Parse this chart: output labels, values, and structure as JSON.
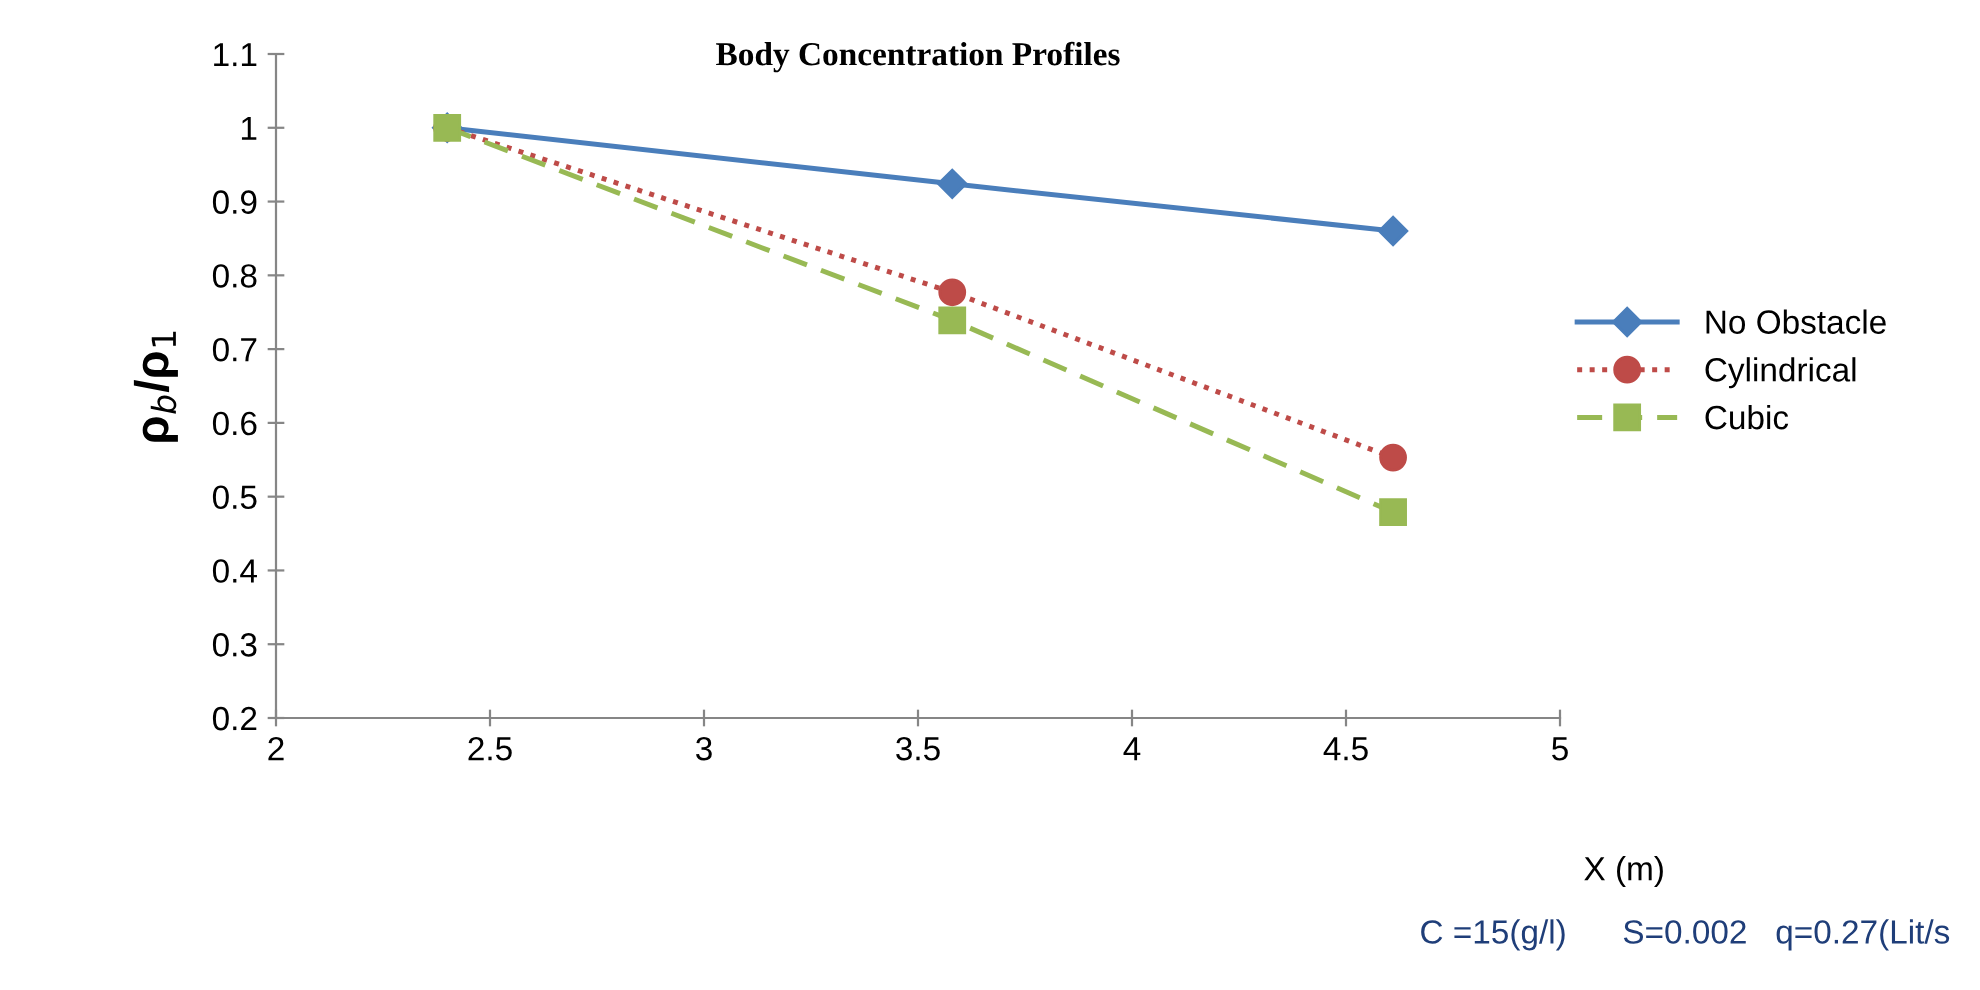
{
  "chart_data": {
    "type": "line",
    "title": "Body Concentration Profiles",
    "xlabel": "X (m)",
    "ylabel": "ρ$_{b}$/ρ$_{1}$",
    "x": [
      2.4,
      3.58,
      4.61
    ],
    "series": [
      {
        "name": "No Obstacle",
        "color": "#4a7ebb",
        "values": [
          1,
          0.924,
          0.86
        ],
        "marker": "diamond",
        "line_style": "solid"
      },
      {
        "name": "Cylindrical",
        "color": "#be4b48",
        "values": [
          1,
          0.777,
          0.553
        ],
        "marker": "circle",
        "line_style": "dotted"
      },
      {
        "name": "Cubic",
        "color": "#98b954",
        "values": [
          1,
          0.739,
          0.479
        ],
        "marker": "square",
        "line_style": "dashed"
      }
    ],
    "xlim": [
      2,
      5
    ],
    "xticks": [
      2,
      2.5,
      3,
      3.5,
      4,
      4.5,
      5
    ],
    "ylim": [
      0.2,
      1.1
    ],
    "yticks": [
      0.2,
      0.3,
      0.4,
      0.5,
      0.6,
      0.7,
      0.8,
      0.9,
      1,
      1.1
    ],
    "grid": false,
    "legend": "right",
    "annotations": [
      "C =15(g/l)      S=0.002   q=0.27(Lit/s"
    ]
  }
}
